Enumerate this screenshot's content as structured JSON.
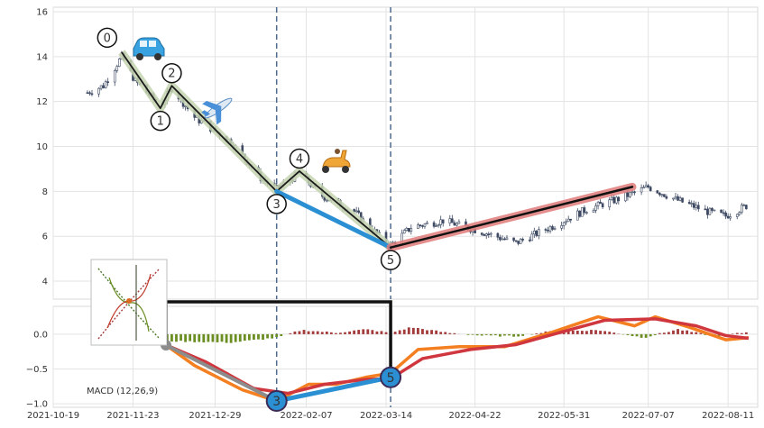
{
  "chart_data": [
    {
      "type": "candlestick",
      "panel": "price",
      "title": "",
      "xlabel": "",
      "ylabel": "",
      "ylim": [
        3.2,
        16.2
      ],
      "yticks": [
        4,
        6,
        8,
        10,
        12,
        14,
        16
      ],
      "x_dates": [
        "2021-10-19",
        "2021-11-23",
        "2021-12-29",
        "2022-02-07",
        "2022-03-14",
        "2022-04-22",
        "2022-05-31",
        "2022-07-07",
        "2022-08-11"
      ],
      "x_tick_labels": [
        "2021-10-19",
        "2021-11-23",
        "2021-12-29",
        "2022-02-07",
        "2022-03-14",
        "2022-04-22",
        "2022-05-31",
        "2022-07-07",
        "2022-08-11"
      ],
      "xlim": [
        "2021-10-19",
        "2022-08-24"
      ],
      "grid": true,
      "wave_points": [
        {
          "label": "0",
          "date": "2021-11-18",
          "value": 14.2
        },
        {
          "label": "1",
          "date": "2021-12-05",
          "value": 11.7
        },
        {
          "label": "2",
          "date": "2021-12-10",
          "value": 12.7
        },
        {
          "label": "3",
          "date": "2022-01-25",
          "value": 8.0
        },
        {
          "label": "4",
          "date": "2022-02-04",
          "value": 8.9
        },
        {
          "label": "5",
          "date": "2022-03-16",
          "value": 5.5
        }
      ],
      "projection_line": {
        "from_date": "2022-01-25",
        "from_value": 8.0,
        "to_date": "2022-03-16",
        "to_value": 5.5,
        "color": "#2b8fd3"
      },
      "trend_line": {
        "from_date": "2022-03-16",
        "from_value": 5.5,
        "to_date": "2022-06-30",
        "to_value": 8.2,
        "color": "#e07b7b"
      },
      "vertical_markers": [
        "2022-01-25",
        "2022-03-16"
      ],
      "icons": [
        "car-icon",
        "airplane-icon",
        "scooter-icon"
      ]
    },
    {
      "type": "macd",
      "panel": "indicator",
      "label": "MACD (12,26,9)",
      "ylim": [
        -1.05,
        0.4
      ],
      "yticks": [
        -1.0,
        -0.5,
        0.0
      ],
      "ytick_labels": [
        "−1.0",
        "−0.5",
        "0.0"
      ],
      "series": [
        {
          "name": "MACD",
          "color": "#f47f20"
        },
        {
          "name": "Signal",
          "color": "#d0363d"
        }
      ],
      "histogram_colors": {
        "positive": "#a33a3a",
        "negative": "#6b8e23"
      },
      "markers": [
        {
          "label": "3",
          "date": "2022-01-25",
          "value": -0.96
        },
        {
          "label": "5",
          "date": "2022-03-16",
          "value": -0.62
        }
      ],
      "inset_icon": "wave-diagram-icon"
    }
  ],
  "colors": {
    "candle": "#3e4a63",
    "wave_line": "#1a1a1a",
    "wave_band": "#c6d3b0",
    "dashed_marker": "#4e6a8f",
    "macd_line": "#f47f20",
    "signal_line": "#d0363d",
    "marker_fill": "#2b8fd3",
    "grid": "#e3e3e3"
  }
}
